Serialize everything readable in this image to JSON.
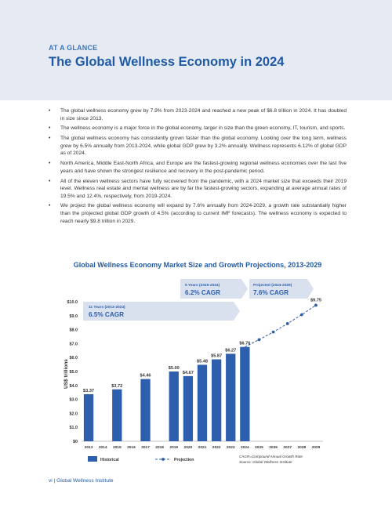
{
  "header": {
    "eyebrow": "AT A GLANCE",
    "title": "The Global Wellness Economy in 2024"
  },
  "bullets": [
    "The global wellness economy grew by 7.9% from 2023-2024 and reached a new peak of $6.8 trillion in 2024. It has doubled in size since 2013.",
    "The wellness economy is a major force in the global economy, larger in size than the green economy, IT, tourism, and sports.",
    "The global wellness economy has consistently grown faster than the global economy. Looking over the long term, wellness grew by 6.5% annually from 2013-2024, while global GDP grew by 3.2% annually. Wellness represents 6.12% of global GDP as of 2024.",
    "North America, Middle East-North Africa, and Europe are the fastest-growing regional wellness economies over the last five years and have shown the strongest resilience and recovery in the post-pandemic period.",
    "All of the eleven wellness sectors have fully recovered from the pandemic, with a 2024 market size that exceeds their 2019 level. Wellness real estate and mental wellness are by far the fastest-growing sectors, expanding at average annual rates of 19.5% and 12.4%, respectively, from 2019-2024.",
    "We project the global wellness economy will expand by 7.6% annually from 2024-2029, a growth rate substantially higher than the projected global GDP growth of 4.5% (according to current IMF forecasts). The wellness economy is expected to reach nearly $9.8 trillion in 2029."
  ],
  "chart_data": {
    "type": "bar",
    "title": "Global Wellness Economy Market Size and Growth Projections, 2013-2029",
    "ylabel": "US$ trillions",
    "ylim": [
      0,
      10
    ],
    "yticks": [
      "$0",
      "$1.0",
      "$2.0",
      "$3.0",
      "$4.0",
      "$5.0",
      "$6.0",
      "$7.0",
      "$8.0",
      "$9.0",
      "$10.0"
    ],
    "categories": [
      "2013",
      "2014",
      "2015",
      "2016",
      "2017",
      "2018",
      "2019",
      "2020",
      "2021",
      "2022",
      "2023",
      "2024",
      "2025",
      "2026",
      "2027",
      "2028",
      "2029"
    ],
    "historical": {
      "name": "Historical",
      "points": [
        {
          "x": "2013",
          "y": 3.37,
          "label": "$3.37"
        },
        {
          "x": "2015",
          "y": 3.72,
          "label": "$3.72"
        },
        {
          "x": "2017",
          "y": 4.46,
          "label": "$4.46"
        },
        {
          "x": "2019",
          "y": 5.0,
          "label": "$5.00"
        },
        {
          "x": "2020",
          "y": 4.67,
          "label": "$4.67"
        },
        {
          "x": "2021",
          "y": 5.48,
          "label": "$5.48"
        },
        {
          "x": "2022",
          "y": 5.87,
          "label": "$5.87"
        },
        {
          "x": "2023",
          "y": 6.27,
          "label": "$6.27"
        },
        {
          "x": "2024",
          "y": 6.76,
          "label": "$6.76"
        }
      ]
    },
    "projection": {
      "name": "Projection",
      "points": [
        {
          "x": "2024",
          "y": 6.76
        },
        {
          "x": "2025",
          "y": 7.28
        },
        {
          "x": "2026",
          "y": 7.83
        },
        {
          "x": "2027",
          "y": 8.43
        },
        {
          "x": "2028",
          "y": 9.07
        },
        {
          "x": "2029",
          "y": 9.75
        }
      ],
      "end_label": "$9.75"
    },
    "cagr_boxes": [
      {
        "period": "11 Years (2013-2024)",
        "value": "6.5% CAGR"
      },
      {
        "period": "5 Years (2019-2024)",
        "value": "6.2% CAGR"
      },
      {
        "period": "Projected (2024-2029)",
        "value": "7.6% CAGR"
      }
    ],
    "notes": [
      "CAGR=Compound Annual Growth Rate",
      "Source: Global Wellness Institute"
    ],
    "colors": {
      "bar": "#2e5fae",
      "projection": "#2e5fae",
      "box": "#d9e1ef",
      "box_text": "#2e5fae"
    }
  },
  "footer": "vi | Global Wellness Institute"
}
